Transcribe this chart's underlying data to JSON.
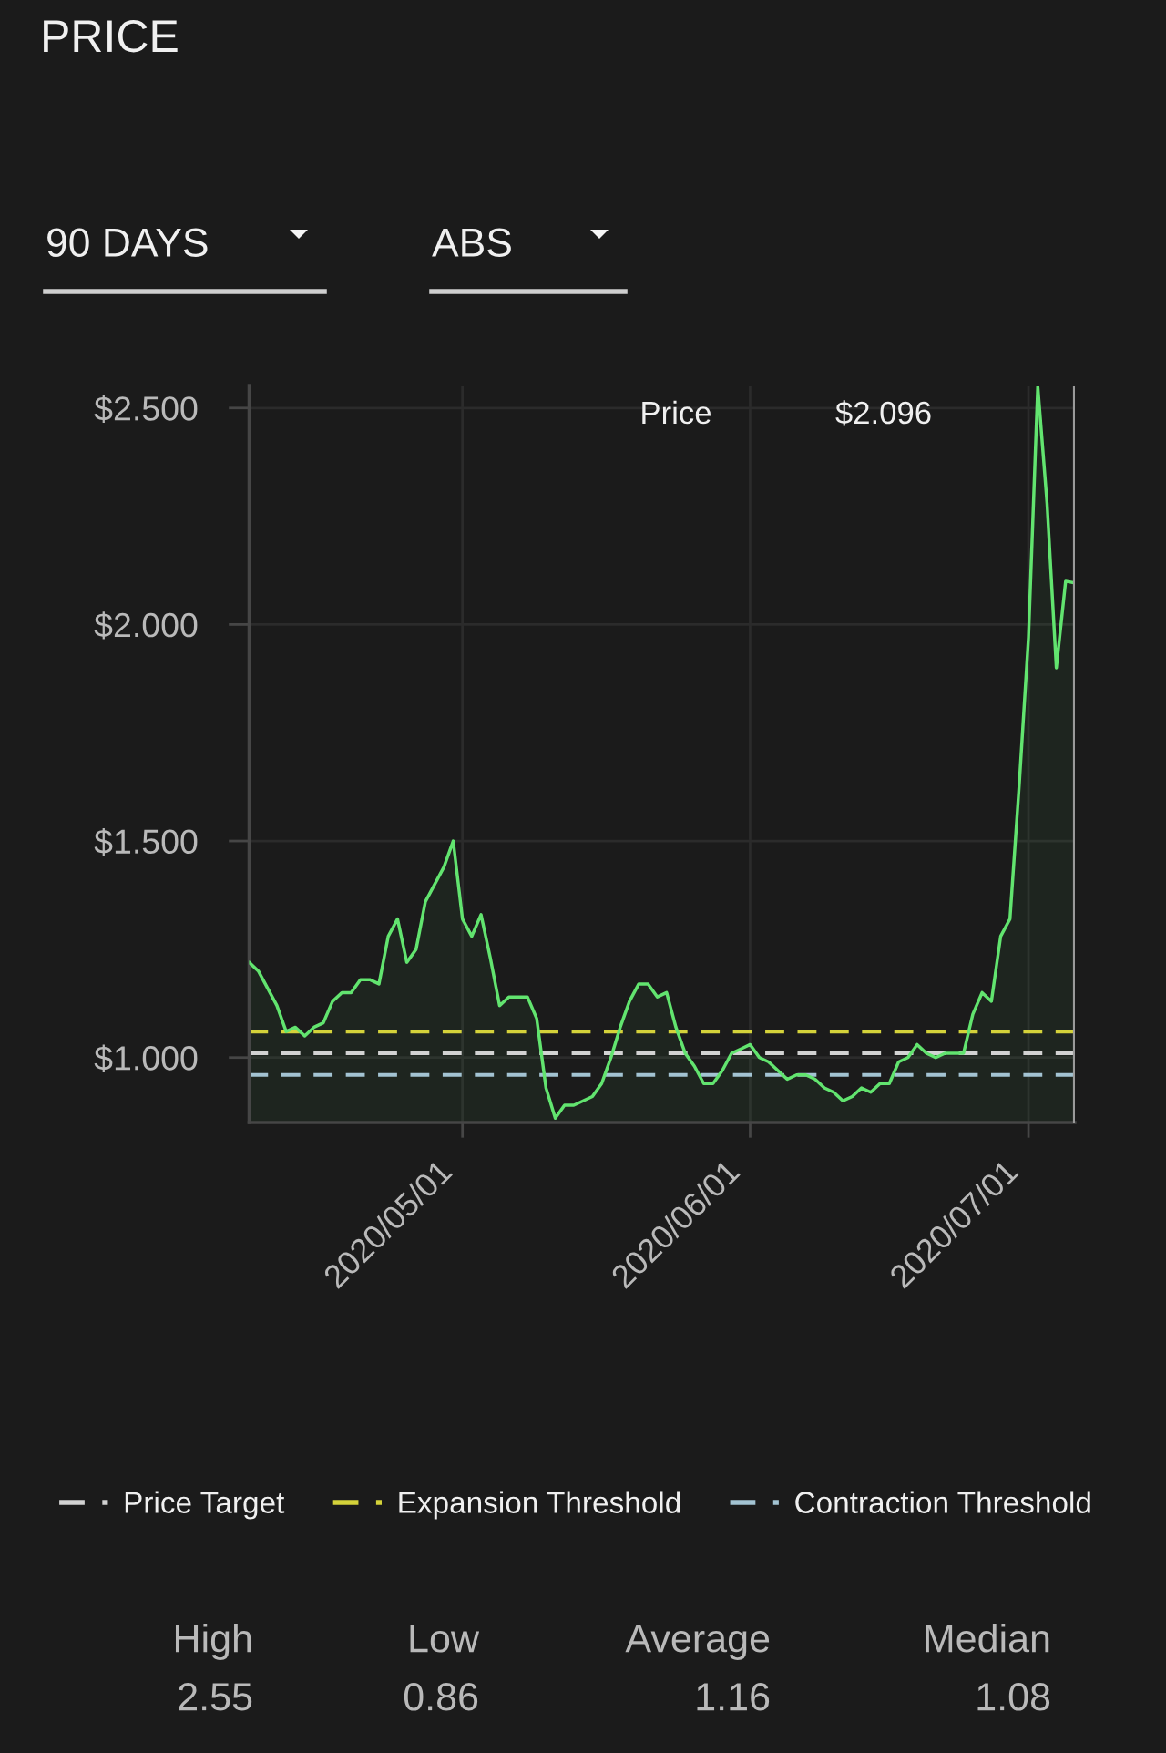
{
  "chart_data": {
    "type": "area",
    "title": "PRICE",
    "annotations": [
      "90 DAYS",
      "ABS",
      "Price",
      "$2.096",
      "High",
      "2.55",
      "Low",
      "0.86",
      "Average",
      "1.16",
      "Median",
      "1.08"
    ],
    "x": [
      "2020-04-08",
      "2020-04-09",
      "2020-04-10",
      "2020-04-11",
      "2020-04-12",
      "2020-04-13",
      "2020-04-14",
      "2020-04-15",
      "2020-04-16",
      "2020-04-17",
      "2020-04-18",
      "2020-04-19",
      "2020-04-20",
      "2020-04-21",
      "2020-04-22",
      "2020-04-23",
      "2020-04-24",
      "2020-04-25",
      "2020-04-26",
      "2020-04-27",
      "2020-04-28",
      "2020-04-29",
      "2020-04-30",
      "2020-05-01",
      "2020-05-02",
      "2020-05-03",
      "2020-05-04",
      "2020-05-05",
      "2020-05-06",
      "2020-05-07",
      "2020-05-08",
      "2020-05-09",
      "2020-05-10",
      "2020-05-11",
      "2020-05-12",
      "2020-05-13",
      "2020-05-14",
      "2020-05-15",
      "2020-05-16",
      "2020-05-17",
      "2020-05-18",
      "2020-05-19",
      "2020-05-20",
      "2020-05-21",
      "2020-05-22",
      "2020-05-23",
      "2020-05-24",
      "2020-05-25",
      "2020-05-26",
      "2020-05-27",
      "2020-05-28",
      "2020-05-29",
      "2020-05-30",
      "2020-05-31",
      "2020-06-01",
      "2020-06-02",
      "2020-06-03",
      "2020-06-04",
      "2020-06-05",
      "2020-06-06",
      "2020-06-07",
      "2020-06-08",
      "2020-06-09",
      "2020-06-10",
      "2020-06-11",
      "2020-06-12",
      "2020-06-13",
      "2020-06-14",
      "2020-06-15",
      "2020-06-16",
      "2020-06-17",
      "2020-06-18",
      "2020-06-19",
      "2020-06-20",
      "2020-06-21",
      "2020-06-22",
      "2020-06-23",
      "2020-06-24",
      "2020-06-25",
      "2020-06-26",
      "2020-06-27",
      "2020-06-28",
      "2020-06-29",
      "2020-06-30",
      "2020-07-01",
      "2020-07-02",
      "2020-07-03",
      "2020-07-04",
      "2020-07-05",
      "2020-07-06"
    ],
    "series": [
      {
        "color": "#62e46f",
        "values": [
          1.22,
          1.2,
          1.16,
          1.12,
          1.06,
          1.07,
          1.05,
          1.07,
          1.08,
          1.13,
          1.15,
          1.15,
          1.18,
          1.18,
          1.17,
          1.28,
          1.32,
          1.22,
          1.25,
          1.36,
          1.4,
          1.44,
          1.5,
          1.32,
          1.28,
          1.33,
          1.23,
          1.12,
          1.14,
          1.14,
          1.14,
          1.09,
          0.93,
          0.86,
          0.89,
          0.89,
          0.9,
          0.91,
          0.94,
          1.0,
          1.07,
          1.13,
          1.17,
          1.17,
          1.14,
          1.15,
          1.07,
          1.01,
          0.98,
          0.94,
          0.94,
          0.97,
          1.01,
          1.02,
          1.03,
          1.0,
          0.99,
          0.97,
          0.95,
          0.96,
          0.96,
          0.95,
          0.93,
          0.92,
          0.9,
          0.91,
          0.93,
          0.92,
          0.94,
          0.94,
          0.99,
          1.0,
          1.03,
          1.01,
          1.0,
          1.01,
          1.01,
          1.01,
          1.1,
          1.15,
          1.13,
          1.28,
          1.32,
          1.63,
          1.97,
          2.55,
          2.28,
          1.9,
          2.1,
          2.096
        ]
      },
      {
        "type": "line",
        "name": "Price Target",
        "color": "#d2d2d2",
        "line_style": "dashed",
        "x": [
          "2020-04-08",
          "2020-07-06"
        ],
        "values": [
          1.01,
          1.01
        ]
      },
      {
        "type": "line",
        "name": "Expansion Threshold",
        "color": "#d4d23a",
        "line_style": "dashed",
        "x": [
          "2020-04-08",
          "2020-07-06"
        ],
        "values": [
          1.06,
          1.06
        ]
      },
      {
        "type": "line",
        "name": "Contraction Threshold",
        "color": "#a3c3d2",
        "line_style": "dashed",
        "x": [
          "2020-04-08",
          "2020-07-06"
        ],
        "values": [
          0.96,
          0.96
        ]
      }
    ],
    "ref_lines": [
      {
        "axis": "x",
        "value": "2020-07-06",
        "color": "#9a9a9a",
        "line_style": "solid"
      }
    ],
    "xlim": [
      "2020-04-08",
      "2020-07-06"
    ],
    "xticks": [
      {
        "value": "2020-05-01",
        "label": "2020/05/01"
      },
      {
        "value": "2020-06-01",
        "label": "2020/06/01"
      },
      {
        "value": "2020-07-01",
        "label": "2020/07/01"
      }
    ],
    "ylim": [
      0.85,
      2.55
    ],
    "yticks": [
      {
        "value": 1.0,
        "label": "$1.000"
      },
      {
        "value": 1.5,
        "label": "$1.500"
      },
      {
        "value": 2.0,
        "label": "$2.000"
      },
      {
        "value": 2.5,
        "label": "$2.500"
      }
    ],
    "grid": true,
    "legend": "bottom"
  }
}
